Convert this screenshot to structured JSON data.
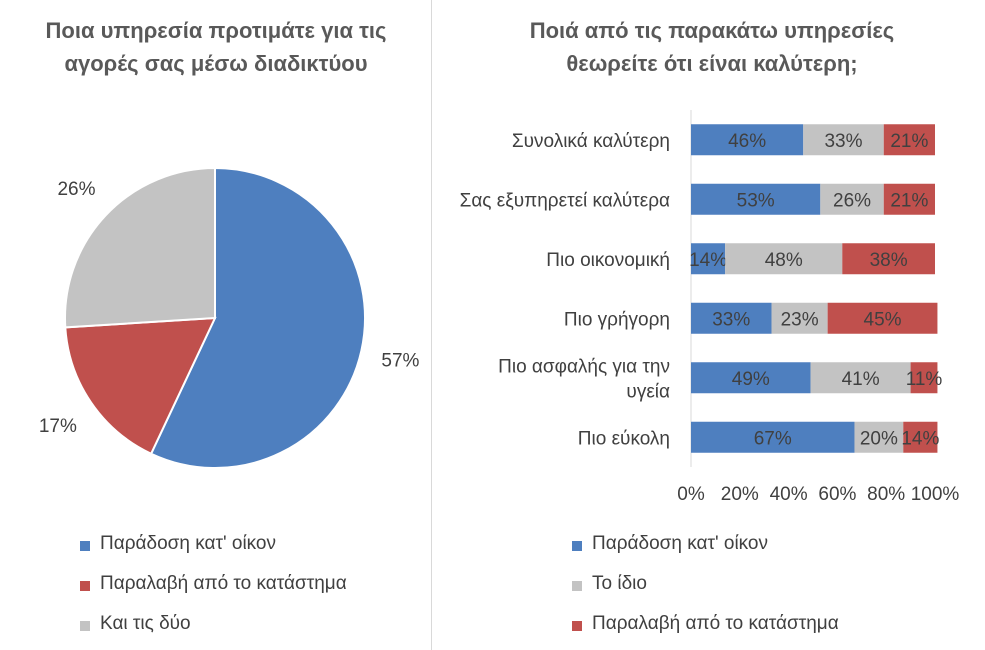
{
  "colors": {
    "blue": "#4e7fbf",
    "red": "#c0504d",
    "gray": "#c3c3c3",
    "text": "#404040",
    "title": "#595959"
  },
  "chart_data": [
    {
      "type": "pie",
      "title": "Ποια υπηρεσία προτιμάτε για τις αγορές σας μέσω διαδικτύου",
      "slices": [
        {
          "name": "Παράδοση κατ' οίκον",
          "value": 57,
          "label": "57%",
          "color": "#4e7fbf"
        },
        {
          "name": "Παραλαβή από το κατάστημα",
          "value": 17,
          "label": "17%",
          "color": "#c0504d"
        },
        {
          "name": "Και τις δύο",
          "value": 26,
          "label": "26%",
          "color": "#c3c3c3"
        }
      ],
      "legend": [
        "Παράδοση κατ' οίκον",
        "Παραλαβή από το κατάστημα",
        "Και τις δύο"
      ],
      "legend_position": "bottom"
    },
    {
      "type": "bar",
      "orientation": "horizontal",
      "stacked": "percent",
      "title": "Ποιά από τις παρακάτω υπηρεσίες θεωρείτε ότι είναι καλύτερη;",
      "categories": [
        "Συνολικά καλύτερη",
        "Σας εξυπηρετεί καλύτερα",
        "Πιο οικονομική",
        "Πιο γρήγορη",
        "Πιο ασφαλής για την υγεία",
        "Πιο εύκολη"
      ],
      "series": [
        {
          "name": "Παράδοση κατ' οίκον",
          "color": "#4e7fbf",
          "values": [
            46,
            53,
            14,
            33,
            49,
            67
          ]
        },
        {
          "name": "Το ίδιο",
          "color": "#c3c3c3",
          "values": [
            33,
            26,
            48,
            23,
            41,
            20
          ]
        },
        {
          "name": "Παραλαβή από το κατάστημα",
          "color": "#c0504d",
          "values": [
            21,
            21,
            38,
            45,
            11,
            14
          ]
        }
      ],
      "xlim": [
        0,
        100
      ],
      "xticks": [
        "0%",
        "20%",
        "40%",
        "60%",
        "80%",
        "100%"
      ],
      "legend_position": "bottom"
    }
  ]
}
